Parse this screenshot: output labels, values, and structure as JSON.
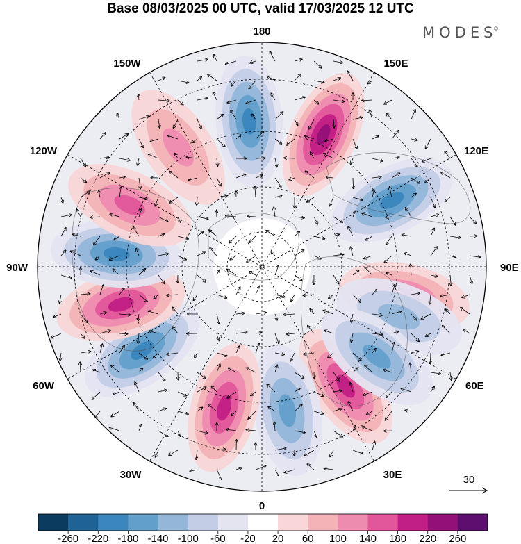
{
  "title": "Base 08/03/2025 00 UTC, valid 17/03/2025 12 UTC",
  "logo": {
    "text": "MODES",
    "mark": "©"
  },
  "map": {
    "projection": "north-polar-stereographic",
    "longitude_labels": [
      {
        "text": "180",
        "position": "top"
      },
      {
        "text": "150E",
        "position": "upper-right"
      },
      {
        "text": "120E",
        "position": "right-upper"
      },
      {
        "text": "90E",
        "position": "right"
      },
      {
        "text": "60E",
        "position": "right-lower"
      },
      {
        "text": "30E",
        "position": "lower-right"
      },
      {
        "text": "0",
        "position": "bottom"
      },
      {
        "text": "30W",
        "position": "lower-left"
      },
      {
        "text": "60W",
        "position": "left-lower"
      },
      {
        "text": "90W",
        "position": "left"
      },
      {
        "text": "120W",
        "position": "left-upper"
      },
      {
        "text": "150W",
        "position": "upper-left"
      }
    ],
    "reference_vector": {
      "label": "30"
    },
    "field_cells": [
      {
        "name": "low-near-180-north",
        "lon": 185,
        "value": -200
      },
      {
        "name": "high-150E",
        "lon": 155,
        "value": 240
      },
      {
        "name": "low-120E",
        "lon": 117,
        "value": -180
      },
      {
        "name": "high-90E-outer",
        "lon": 78,
        "value": 140
      },
      {
        "name": "low-near-90E-inner",
        "lon": 70,
        "value": -100
      },
      {
        "name": "high-35E",
        "lon": 35,
        "value": 180
      },
      {
        "name": "low-55E",
        "lon": 52,
        "value": -140
      },
      {
        "name": "low-10E",
        "lon": 10,
        "value": -160
      },
      {
        "name": "high-345",
        "lon": 345,
        "value": 200
      },
      {
        "name": "low-305",
        "lon": 305,
        "value": -180
      },
      {
        "name": "high-285",
        "lon": 285,
        "value": 200
      },
      {
        "name": "low-265",
        "lon": 265,
        "value": -180
      },
      {
        "name": "high-245",
        "lon": 245,
        "value": 140
      },
      {
        "name": "high-215",
        "lon": 215,
        "value": 120
      }
    ]
  },
  "colorbar": {
    "colors": [
      "#0b3b5e",
      "#1f6396",
      "#3a86bd",
      "#629fcb",
      "#93b6d9",
      "#c3cde6",
      "#e4e4f1",
      "#ffffff",
      "#f9d6d7",
      "#f3b3b7",
      "#ee8cb0",
      "#e2579b",
      "#c21f86",
      "#921077",
      "#5d0e6e"
    ],
    "ticks": [
      "-260",
      "-220",
      "-180",
      "-140",
      "-100",
      "-60",
      "-20",
      "20",
      "60",
      "100",
      "140",
      "180",
      "220",
      "260"
    ]
  }
}
